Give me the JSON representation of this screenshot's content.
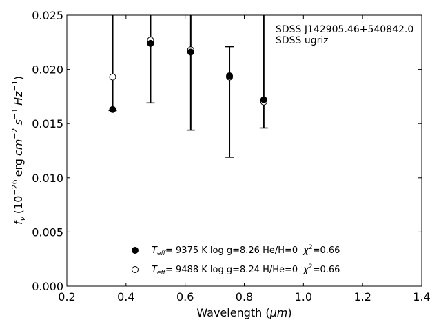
{
  "chart_data": {
    "type": "scatter",
    "title": "",
    "xlabel_main": "Wavelength (",
    "xlabel_unit": "μm",
    "xlabel_close": ")",
    "ylabel_symbol": "f",
    "ylabel_sub": "ν",
    "ylabel_open": "(10",
    "ylabel_exp1": "−26",
    "ylabel_erg": "erg",
    "ylabel_cm": "cm",
    "ylabel_exp2": "−2",
    "ylabel_s": "s",
    "ylabel_exp3": "−1",
    "ylabel_hz": "Hz",
    "ylabel_exp4": "−1",
    "ylabel_close": ")",
    "xlim": [
      0.2,
      1.4
    ],
    "ylim": [
      0.0,
      0.025
    ],
    "xticks": [
      0.2,
      0.4,
      0.6,
      0.8,
      1.0,
      1.2,
      1.4
    ],
    "xtick_labels": [
      "0.2",
      "0.4",
      "0.6",
      "0.8",
      "1.0",
      "1.2",
      "1.4"
    ],
    "yticks": [
      0.0,
      0.005,
      0.01,
      0.015,
      0.02,
      0.025
    ],
    "ytick_labels": [
      "0.000",
      "0.005",
      "0.010",
      "0.015",
      "0.020",
      "0.025"
    ],
    "grid": false,
    "annotation_lines": [
      "SDSS J142905.46+540842.0",
      "SDSS ugriz"
    ],
    "observed": [
      {
        "x": 0.355,
        "y": 0.0163,
        "y_low": 0.0162,
        "y_high": 0.0255
      },
      {
        "x": 0.483,
        "y": 0.0224,
        "y_low": 0.0169,
        "y_high": 0.0255
      },
      {
        "x": 0.619,
        "y": 0.0216,
        "y_low": 0.0144,
        "y_high": 0.0255
      },
      {
        "x": 0.75,
        "y": 0.0194,
        "y_low": 0.0119,
        "y_high": 0.0221
      },
      {
        "x": 0.866,
        "y": 0.0172,
        "y_low": 0.0146,
        "y_high": 0.0255
      }
    ],
    "series": [
      {
        "marker": "filled-circle",
        "label_T": "T",
        "label_Tsub": "eff",
        "label_rest": "=  9375 K  log g=8.26  He/H=0",
        "label_chi": "χ",
        "label_chi_exp": "2",
        "label_chi_val": "=0.66",
        "x": [
          0.355,
          0.483,
          0.619,
          0.75,
          0.866
        ],
        "y": [
          0.0163,
          0.0224,
          0.0216,
          0.0194,
          0.0172
        ]
      },
      {
        "marker": "open-circle",
        "label_T": "T",
        "label_Tsub": "eff",
        "label_rest": "=  9488 K  log g=8.24  H/He=0",
        "label_chi": "χ",
        "label_chi_exp": "2",
        "label_chi_val": "=0.66",
        "x": [
          0.355,
          0.483,
          0.619,
          0.75,
          0.866
        ],
        "y": [
          0.0193,
          0.0227,
          0.0218,
          0.0193,
          0.017
        ]
      }
    ]
  }
}
